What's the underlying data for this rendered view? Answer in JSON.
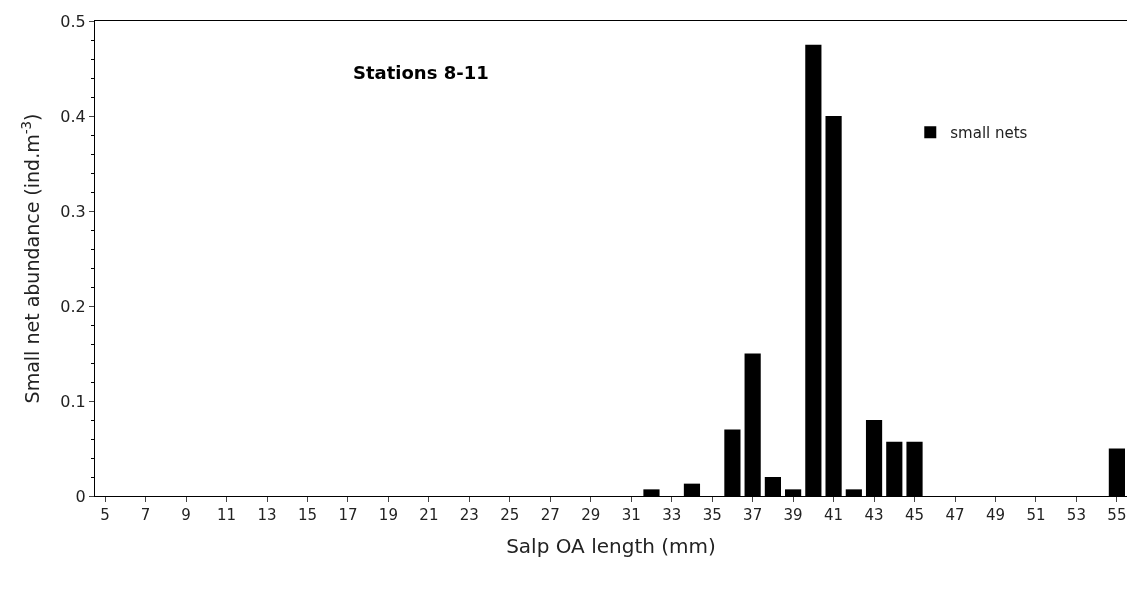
{
  "chart_data": {
    "type": "bar",
    "title": "Stations 8-11",
    "xlabel": "Salp OA length (mm)",
    "ylabel": "Small net abundance (ind.m$^{-3}$)",
    "categories": [
      "5",
      null,
      "7",
      null,
      "9",
      null,
      "11",
      null,
      "13",
      null,
      "15",
      null,
      "17",
      null,
      "19",
      null,
      "21",
      null,
      "23",
      null,
      "25",
      null,
      "27",
      null,
      "29",
      null,
      "31",
      null,
      "33",
      null,
      "35",
      null,
      "37",
      null,
      "39",
      null,
      "41",
      null,
      "43",
      null,
      "45",
      null,
      "47",
      null,
      "49",
      null,
      "51",
      null,
      "53",
      null,
      "55"
    ],
    "series": [
      {
        "name": "small nets",
        "color": "#000000",
        "values": [
          0,
          0,
          0,
          0,
          0,
          0,
          0,
          0,
          0,
          0,
          0,
          0,
          0,
          0,
          0,
          0,
          0,
          0,
          0,
          0,
          0,
          0,
          0,
          0,
          0,
          0,
          0,
          0.007,
          0,
          0.013,
          0,
          0.07,
          0.15,
          0.02,
          0.007,
          0.475,
          0.4,
          0.007,
          0.08,
          0.057,
          0.057,
          0,
          0,
          0,
          0,
          0,
          0,
          0,
          0,
          0,
          0.05
        ]
      }
    ],
    "ylim": [
      0,
      0.5
    ],
    "yticks": [
      0,
      0.1,
      0.2,
      0.3,
      0.4,
      0.5
    ],
    "legend": "top right"
  }
}
